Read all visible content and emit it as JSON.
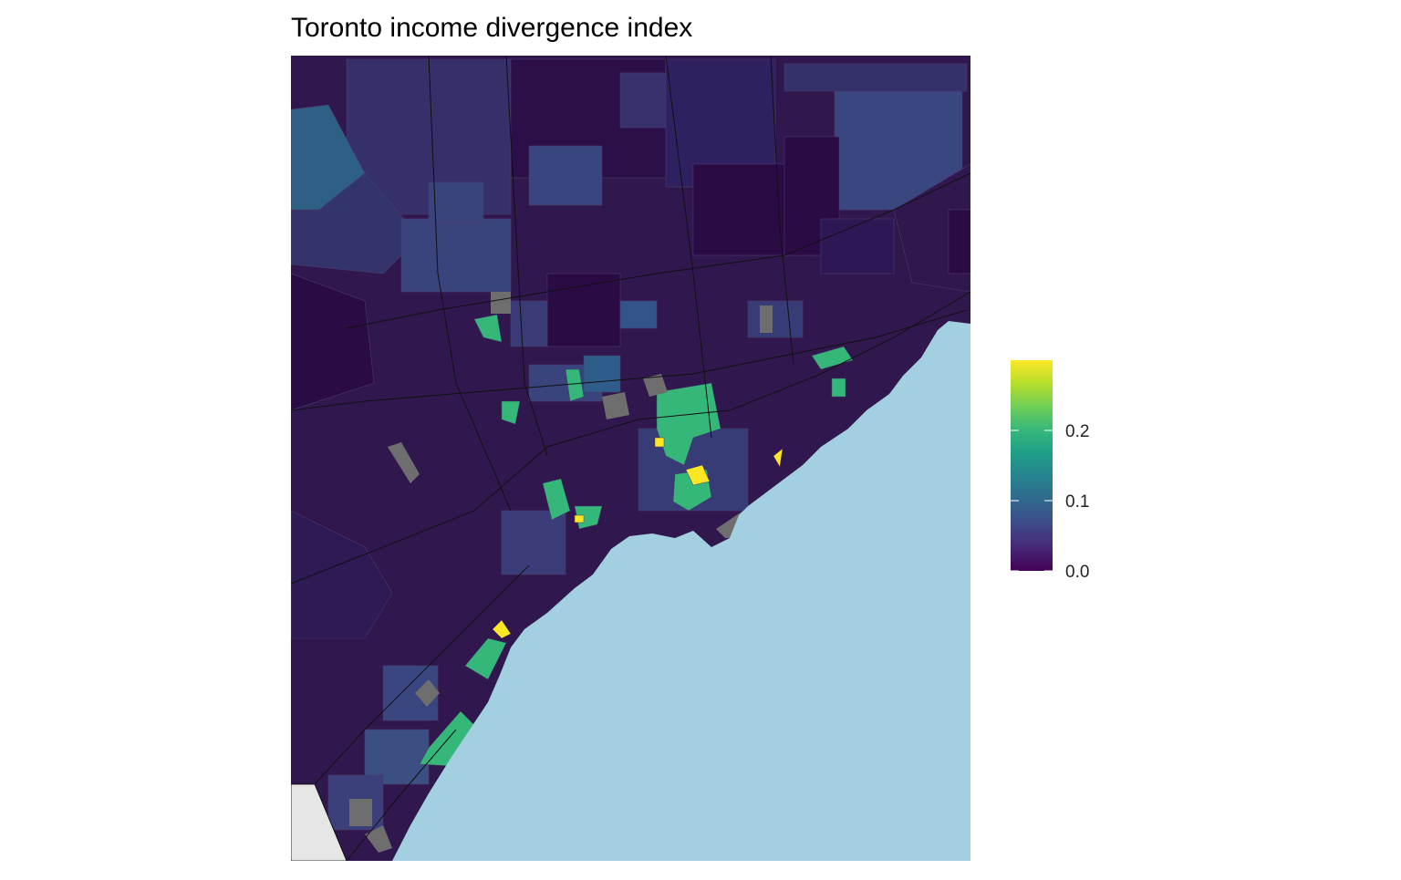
{
  "chart_data": {
    "type": "choropleth",
    "title": "Toronto income divergence index",
    "colormap": "viridis",
    "colorbar_lim": [
      0,
      0.3
    ],
    "colorbar_ticks": [
      {
        "value": 0,
        "label": "0.0"
      },
      0.1,
      0.2
    ]
  }
}
